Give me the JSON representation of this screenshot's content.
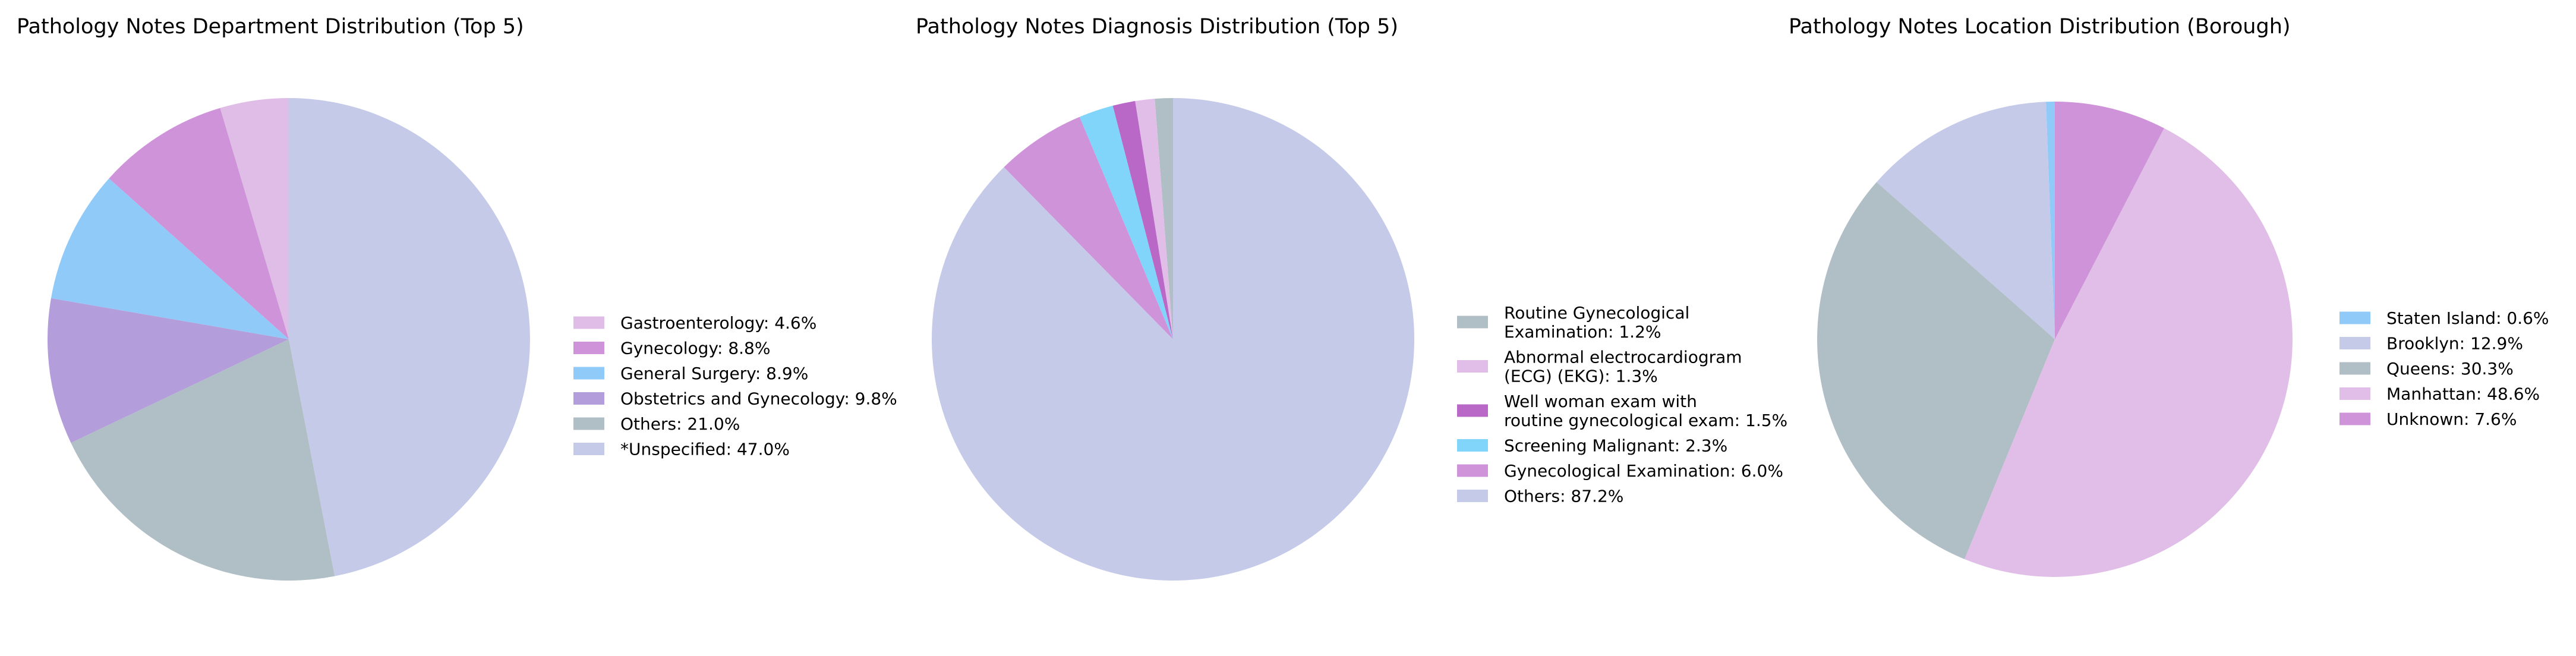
{
  "chart_data": [
    {
      "type": "pie",
      "title": "Pathology Notes Department Distribution (Top 5)",
      "slices": [
        {
          "label": "Gastroenterology",
          "value": 4.6,
          "color": "#e0bde6"
        },
        {
          "label": "Gynecology",
          "value": 8.8,
          "color": "#ce93d8"
        },
        {
          "label": "General Surgery",
          "value": 8.9,
          "color": "#90caf9"
        },
        {
          "label": "Obstetrics and Gynecology",
          "value": 9.8,
          "color": "#b39ddb"
        },
        {
          "label": "Others",
          "value": 21.0,
          "color": "#b0bec5"
        },
        {
          "label": "*Unspecified",
          "value": 47.0,
          "color": "#c5cae9"
        }
      ],
      "legend_labels": [
        [
          "Gastroenterology: 4.6%"
        ],
        [
          "Gynecology: 8.8%"
        ],
        [
          "General Surgery: 8.9%"
        ],
        [
          "Obstetrics and Gynecology: 9.8%"
        ],
        [
          "Others: 21.0%"
        ],
        [
          "*Unspecified: 47.0%"
        ]
      ],
      "legend_position": "right"
    },
    {
      "type": "pie",
      "title": "Pathology Notes Diagnosis Distribution (Top 5)",
      "slices": [
        {
          "label": "Routine Gynecological Examination",
          "value": 1.2,
          "color": "#b0bec5"
        },
        {
          "label": "Abnormal electrocardiogram (ECG) (EKG)",
          "value": 1.3,
          "color": "#e1bee7"
        },
        {
          "label": "Well woman exam with routine gynecological exam",
          "value": 1.5,
          "color": "#ba68c8"
        },
        {
          "label": "Screening Malignant",
          "value": 2.3,
          "color": "#81d4fa"
        },
        {
          "label": "Gynecological Examination",
          "value": 6.0,
          "color": "#ce93d8"
        },
        {
          "label": "Others",
          "value": 87.2,
          "color": "#c5cae9"
        }
      ],
      "legend_labels": [
        [
          "Routine Gynecological",
          " Examination: 1.2%"
        ],
        [
          "Abnormal electrocardiogram",
          " (ECG) (EKG): 1.3%"
        ],
        [
          "Well woman exam with",
          " routine gynecological exam: 1.5%"
        ],
        [
          "Screening Malignant: 2.3%"
        ],
        [
          "Gynecological Examination: 6.0%"
        ],
        [
          "Others: 87.2%"
        ]
      ],
      "legend_position": "right"
    },
    {
      "type": "pie",
      "title": "Pathology Notes Location Distribution (Borough)",
      "slices": [
        {
          "label": "Staten Island",
          "value": 0.6,
          "color": "#90caf9"
        },
        {
          "label": "Brooklyn",
          "value": 12.9,
          "color": "#c5cae9"
        },
        {
          "label": "Queens",
          "value": 30.3,
          "color": "#b0bec5"
        },
        {
          "label": "Manhattan",
          "value": 48.6,
          "color": "#e1bee7"
        },
        {
          "label": "Unknown",
          "value": 7.6,
          "color": "#ce93d8"
        }
      ],
      "legend_labels": [
        [
          "Staten Island: 0.6%"
        ],
        [
          "Brooklyn: 12.9%"
        ],
        [
          "Queens: 30.3%"
        ],
        [
          "Manhattan: 48.6%"
        ],
        [
          "Unknown: 7.6%"
        ]
      ],
      "legend_position": "right"
    }
  ]
}
